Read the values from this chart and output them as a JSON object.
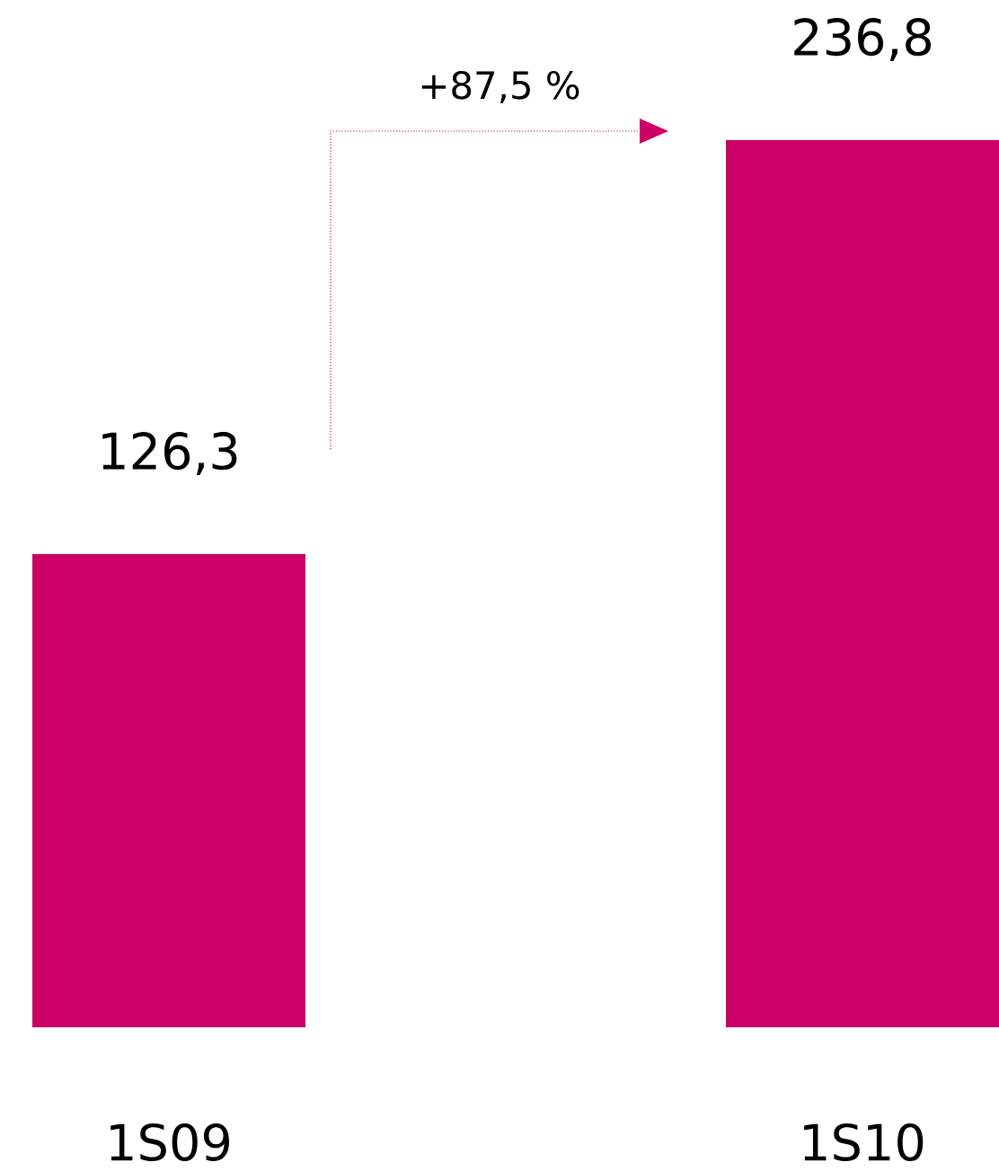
{
  "chart_data": {
    "type": "bar",
    "categories": [
      "1S09",
      "1S10"
    ],
    "series": [
      {
        "color": "#cc0066",
        "values": [
          126.3,
          236.8
        ],
        "value_labels": [
          "126,3",
          "236,8"
        ]
      }
    ],
    "annotations": [
      "+87,5 %"
    ]
  }
}
